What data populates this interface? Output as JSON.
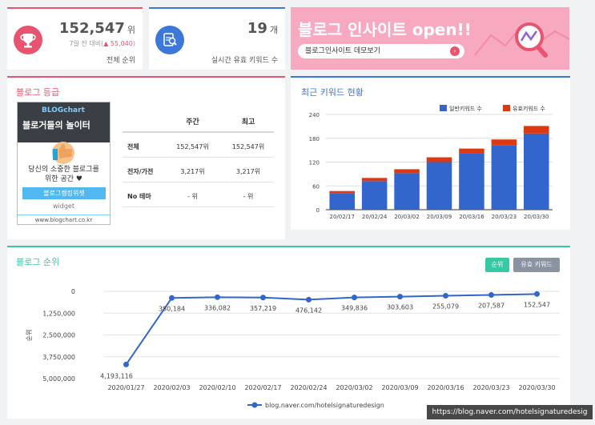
{
  "stats": {
    "rank": {
      "value": "152,547",
      "unit": "위",
      "compare_label": "7일 전 대비(",
      "compare_value": "▲ 55,040",
      "compare_close": ")",
      "caption": "전체 순위"
    },
    "keywords": {
      "value": "19",
      "unit": "개",
      "caption": "실시간 유효 키워드 수"
    }
  },
  "banner": {
    "title": "블로그 인사이트 open!!",
    "button_label": "블로그인사이트 데모보기",
    "arrow": "›"
  },
  "grade": {
    "title": "블로그 등급",
    "columns": [
      "",
      "주간",
      "최고"
    ],
    "rows": [
      {
        "label": "전체",
        "weekly": "152,547위",
        "best": "152,547위"
      },
      {
        "label": "전자/가전",
        "weekly": "3,217위",
        "best": "3,217위"
      },
      {
        "label": "No 테마",
        "weekly": "- 위",
        "best": "- 위"
      }
    ],
    "widget": {
      "brand": "BLOGchart",
      "subtitle": "블로거들의 놀이터",
      "message_line1": "당신의 소중한 블로그를",
      "message_line2": "위한 공간 ♥",
      "button": "블로그랭킹위젯",
      "widget_label": "widget",
      "url": "www.blogchart.co.kr"
    }
  },
  "keyword_chart": {
    "title": "최근 키워드 현황",
    "legend": [
      "일반키워드 수",
      "유효키워드 수"
    ]
  },
  "rank_chart": {
    "title": "블로그 순위",
    "buttons": [
      "순위",
      "유효 키워드"
    ],
    "legend": "blog.naver.com/hotelsignaturedesign"
  },
  "watermark": "https://blog.naver.com/hotelsignaturedesig",
  "colors": {
    "red": "#e8546f",
    "blue": "#3c78d8",
    "green": "#37c8a5",
    "bar_blue": "#3366cc",
    "bar_red": "#dc3912"
  },
  "chart_data": [
    {
      "type": "bar",
      "title": "최근 키워드 현황",
      "stacked": true,
      "categories": [
        "20/02/17",
        "20/02/24",
        "20/03/02",
        "20/03/09",
        "20/03/16",
        "20/03/23",
        "20/03/30"
      ],
      "series": [
        {
          "name": "일반키워드 수",
          "values": [
            42,
            72,
            92,
            120,
            142,
            162,
            192
          ]
        },
        {
          "name": "유효키워드 수",
          "values": [
            5,
            8,
            10,
            12,
            12,
            15,
            19
          ]
        }
      ],
      "ylim": [
        0,
        240
      ],
      "yticks": [
        0,
        60,
        120,
        180,
        240
      ],
      "legend_position": "top-right"
    },
    {
      "type": "line",
      "title": "블로그 순위",
      "x": [
        "2020/01/27",
        "2020/02/03",
        "2020/02/10",
        "2020/02/17",
        "2020/02/24",
        "2020/03/02",
        "2020/03/09",
        "2020/03/16",
        "2020/03/23",
        "2020/03/30"
      ],
      "values": [
        4193116,
        380184,
        336082,
        357219,
        476142,
        349836,
        303603,
        255079,
        207587,
        152547
      ],
      "data_labels": [
        "4,193,116",
        "380,184",
        "336,082",
        "357,219",
        "476,142",
        "349,836",
        "303,603",
        "255,079",
        "207,587",
        "152,547"
      ],
      "ylabel": "순위",
      "ylim": [
        0,
        5000000
      ],
      "y_reversed": true,
      "yticks": [
        "0",
        "1,250,000",
        "2,500,000",
        "3,750,000",
        "5,000,000"
      ],
      "series_name": "blog.naver.com/hotelsignaturedesign",
      "legend_position": "bottom"
    }
  ]
}
